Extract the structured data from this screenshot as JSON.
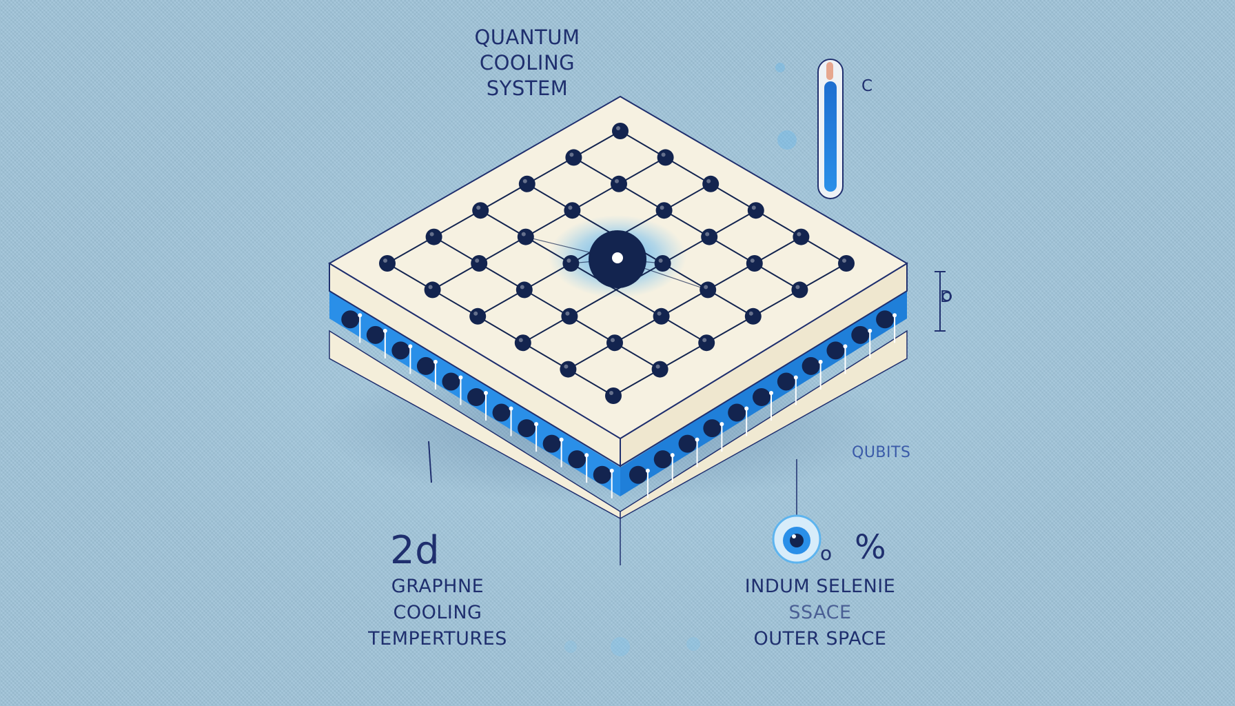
{
  "title": {
    "lines": [
      "QUANTUM",
      "COOLING",
      "SYSTEM"
    ]
  },
  "labels": {
    "thermometer": "C",
    "thickness": "D",
    "qubits": "QUBITS",
    "left_big": "2d",
    "right_symbol": "%",
    "right_small": "o"
  },
  "left_group": {
    "lines": [
      "GRAPHNE",
      "COOLING",
      "TEMPERTURES"
    ]
  },
  "right_group": {
    "lines": [
      "INDUM SELENIE",
      "SSACE",
      "OUTER SPACE"
    ]
  },
  "lattice": {
    "columns": 6,
    "rows": 6
  },
  "colors": {
    "background": "#9fc3d8",
    "slab_top": "#f6f1e1",
    "accent_blue": "#2a8fe8",
    "atom": "#13244f",
    "text": "#1f2f6e"
  }
}
